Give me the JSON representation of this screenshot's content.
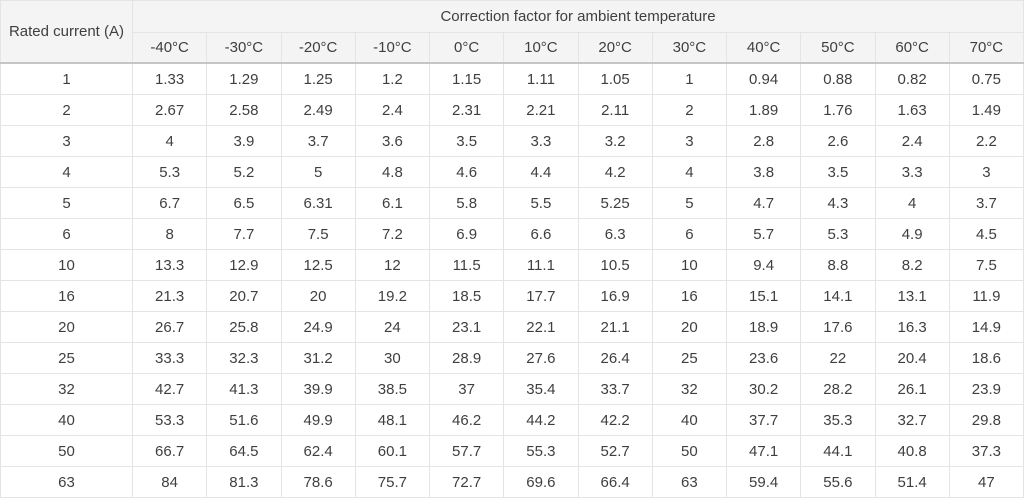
{
  "chart_data": {
    "type": "table",
    "title": "Correction factor for ambient temperature",
    "row_header": "Rated current (A)",
    "columns": [
      "-40°C",
      "-30°C",
      "-20°C",
      "-10°C",
      "0°C",
      "10°C",
      "20°C",
      "30°C",
      "40°C",
      "50°C",
      "60°C",
      "70°C"
    ],
    "rows": [
      {
        "current": "1",
        "values": [
          "1.33",
          "1.29",
          "1.25",
          "1.2",
          "1.15",
          "1.11",
          "1.05",
          "1",
          "0.94",
          "0.88",
          "0.82",
          "0.75"
        ]
      },
      {
        "current": "2",
        "values": [
          "2.67",
          "2.58",
          "2.49",
          "2.4",
          "2.31",
          "2.21",
          "2.11",
          "2",
          "1.89",
          "1.76",
          "1.63",
          "1.49"
        ]
      },
      {
        "current": "3",
        "values": [
          "4",
          "3.9",
          "3.7",
          "3.6",
          "3.5",
          "3.3",
          "3.2",
          "3",
          "2.8",
          "2.6",
          "2.4",
          "2.2"
        ]
      },
      {
        "current": "4",
        "values": [
          "5.3",
          "5.2",
          "5",
          "4.8",
          "4.6",
          "4.4",
          "4.2",
          "4",
          "3.8",
          "3.5",
          "3.3",
          "3"
        ]
      },
      {
        "current": "5",
        "values": [
          "6.7",
          "6.5",
          "6.31",
          "6.1",
          "5.8",
          "5.5",
          "5.25",
          "5",
          "4.7",
          "4.3",
          "4",
          "3.7"
        ]
      },
      {
        "current": "6",
        "values": [
          "8",
          "7.7",
          "7.5",
          "7.2",
          "6.9",
          "6.6",
          "6.3",
          "6",
          "5.7",
          "5.3",
          "4.9",
          "4.5"
        ]
      },
      {
        "current": "10",
        "values": [
          "13.3",
          "12.9",
          "12.5",
          "12",
          "11.5",
          "11.1",
          "10.5",
          "10",
          "9.4",
          "8.8",
          "8.2",
          "7.5"
        ]
      },
      {
        "current": "16",
        "values": [
          "21.3",
          "20.7",
          "20",
          "19.2",
          "18.5",
          "17.7",
          "16.9",
          "16",
          "15.1",
          "14.1",
          "13.1",
          "11.9"
        ]
      },
      {
        "current": "20",
        "values": [
          "26.7",
          "25.8",
          "24.9",
          "24",
          "23.1",
          "22.1",
          "21.1",
          "20",
          "18.9",
          "17.6",
          "16.3",
          "14.9"
        ]
      },
      {
        "current": "25",
        "values": [
          "33.3",
          "32.3",
          "31.2",
          "30",
          "28.9",
          "27.6",
          "26.4",
          "25",
          "23.6",
          "22",
          "20.4",
          "18.6"
        ]
      },
      {
        "current": "32",
        "values": [
          "42.7",
          "41.3",
          "39.9",
          "38.5",
          "37",
          "35.4",
          "33.7",
          "32",
          "30.2",
          "28.2",
          "26.1",
          "23.9"
        ]
      },
      {
        "current": "40",
        "values": [
          "53.3",
          "51.6",
          "49.9",
          "48.1",
          "46.2",
          "44.2",
          "42.2",
          "40",
          "37.7",
          "35.3",
          "32.7",
          "29.8"
        ]
      },
      {
        "current": "50",
        "values": [
          "66.7",
          "64.5",
          "62.4",
          "60.1",
          "57.7",
          "55.3",
          "52.7",
          "50",
          "47.1",
          "44.1",
          "40.8",
          "37.3"
        ]
      },
      {
        "current": "63",
        "values": [
          "84",
          "81.3",
          "78.6",
          "75.7",
          "72.7",
          "69.6",
          "66.4",
          "63",
          "59.4",
          "55.6",
          "51.4",
          "47"
        ]
      }
    ]
  },
  "colors": {
    "header_bg": "#f4f4f4",
    "cell_border": "#e4e4e4",
    "header_separator": "#c6c6c6",
    "text": "#3f3f3f"
  }
}
